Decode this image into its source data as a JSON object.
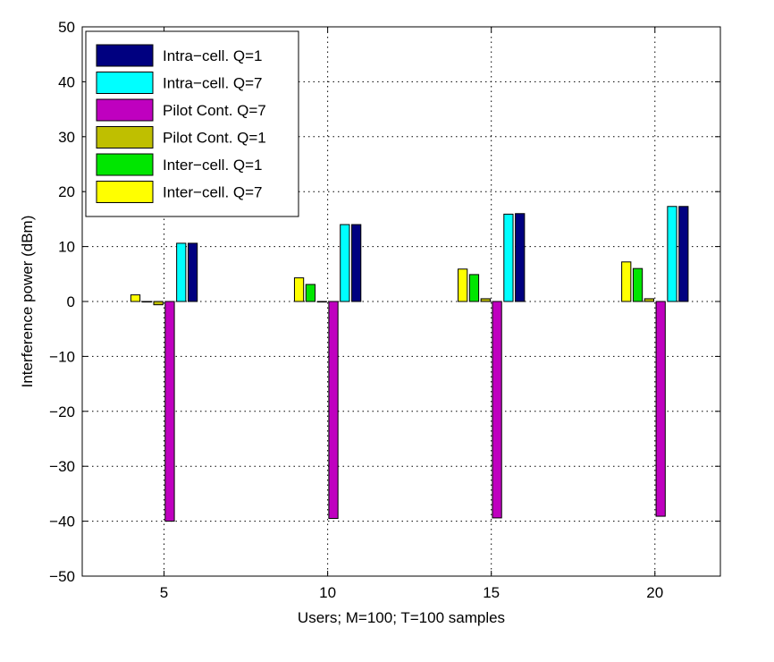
{
  "chart_data": {
    "type": "bar",
    "xlabel": "Users; M=100; T=100 samples",
    "ylabel": "Interference power (dBm)",
    "xlim": [
      2.5,
      22
    ],
    "ylim": [
      -50,
      50
    ],
    "xticks": [
      5,
      10,
      15,
      20
    ],
    "yticks": [
      -50,
      -40,
      -30,
      -20,
      -10,
      0,
      10,
      20,
      30,
      40,
      50
    ],
    "grid": true,
    "legend_position": "top-left",
    "categories": [
      5,
      10,
      15,
      20
    ],
    "series": [
      {
        "name": "Intra−cell. Q=1",
        "color": "#000080",
        "values": [
          10.6,
          14.0,
          16.0,
          17.3
        ]
      },
      {
        "name": "Intra−cell. Q=7",
        "color": "#00ffff",
        "values": [
          10.6,
          14.0,
          15.9,
          17.3
        ]
      },
      {
        "name": "Pilot Cont. Q=7",
        "color": "#bf00bf",
        "values": [
          -40.0,
          -39.5,
          -39.4,
          -39.1
        ]
      },
      {
        "name": "Pilot Cont. Q=1",
        "color": "#bfbf00",
        "values": [
          -0.6,
          0.0,
          0.5,
          0.5
        ]
      },
      {
        "name": "Inter−cell. Q=1",
        "color": "#00e600",
        "values": [
          0.0,
          3.1,
          4.9,
          6.0
        ]
      },
      {
        "name": "Inter−cell. Q=7",
        "color": "#ffff00",
        "values": [
          1.2,
          4.3,
          5.9,
          7.2
        ]
      }
    ],
    "draw_order": [
      5,
      4,
      3,
      2,
      1,
      0
    ]
  }
}
